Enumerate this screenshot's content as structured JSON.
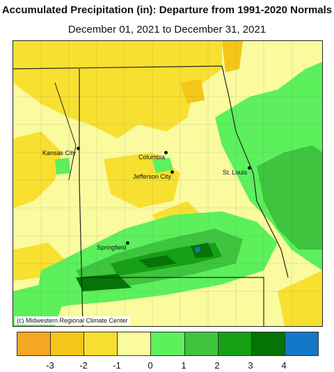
{
  "title": "Accumulated Precipitation (in): Departure from 1991-2020 Normals",
  "subtitle": "December 01, 2021 to December 31, 2021",
  "credit": "(c) Midwestern Regional Climate Center",
  "cities": [
    {
      "name": "Kansas City"
    },
    {
      "name": "Columbia"
    },
    {
      "name": "Jefferson City"
    },
    {
      "name": "St. Louis"
    },
    {
      "name": "Springfield"
    }
  ],
  "legend": {
    "colors": [
      "#f5a623",
      "#f5c518",
      "#f8e030",
      "#fafa9e",
      "#5cf05c",
      "#3ec43e",
      "#16a016",
      "#067306",
      "#1478c8"
    ],
    "ticks": [
      "-3",
      "-2",
      "-1",
      "0",
      "1",
      "2",
      "3",
      "4"
    ]
  }
}
